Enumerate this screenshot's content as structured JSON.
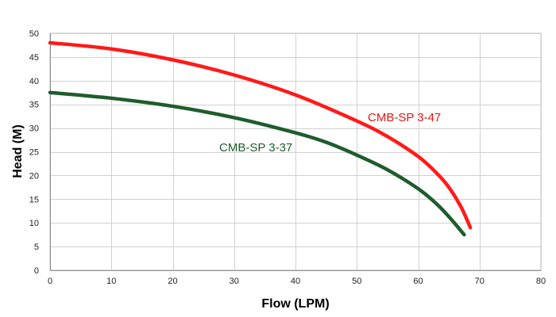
{
  "chart_data": {
    "type": "line",
    "title": "",
    "xlabel": "Flow (LPM)",
    "ylabel": "Head (M)",
    "xlim": [
      0,
      80
    ],
    "ylim": [
      0,
      50
    ],
    "x_ticks": [
      0,
      10,
      20,
      30,
      40,
      50,
      60,
      70,
      80
    ],
    "y_ticks": [
      0,
      5,
      10,
      15,
      20,
      25,
      30,
      35,
      40,
      45,
      50
    ],
    "grid": true,
    "legend": "none (series labelled directly on the plot)",
    "series": [
      {
        "name": "CMB-SP 3-47",
        "color": "#ff1a1a",
        "points": [
          [
            0,
            48
          ],
          [
            10,
            46.7
          ],
          [
            20,
            44.4
          ],
          [
            30,
            41.2
          ],
          [
            40,
            37
          ],
          [
            50,
            31.5
          ],
          [
            55,
            28.2
          ],
          [
            60,
            24
          ],
          [
            63,
            20.5
          ],
          [
            65,
            17.5
          ],
          [
            67,
            13.3
          ],
          [
            68.5,
            9
          ]
        ]
      },
      {
        "name": "CMB-SP 3-37",
        "color": "#1e5c2e",
        "points": [
          [
            0,
            37.5
          ],
          [
            10,
            36.3
          ],
          [
            20,
            34.6
          ],
          [
            30,
            32.2
          ],
          [
            40,
            29
          ],
          [
            45,
            27
          ],
          [
            50,
            24.3
          ],
          [
            55,
            21.2
          ],
          [
            60,
            17.2
          ],
          [
            63,
            14
          ],
          [
            65,
            11.3
          ],
          [
            67.5,
            7.5
          ]
        ]
      }
    ]
  }
}
